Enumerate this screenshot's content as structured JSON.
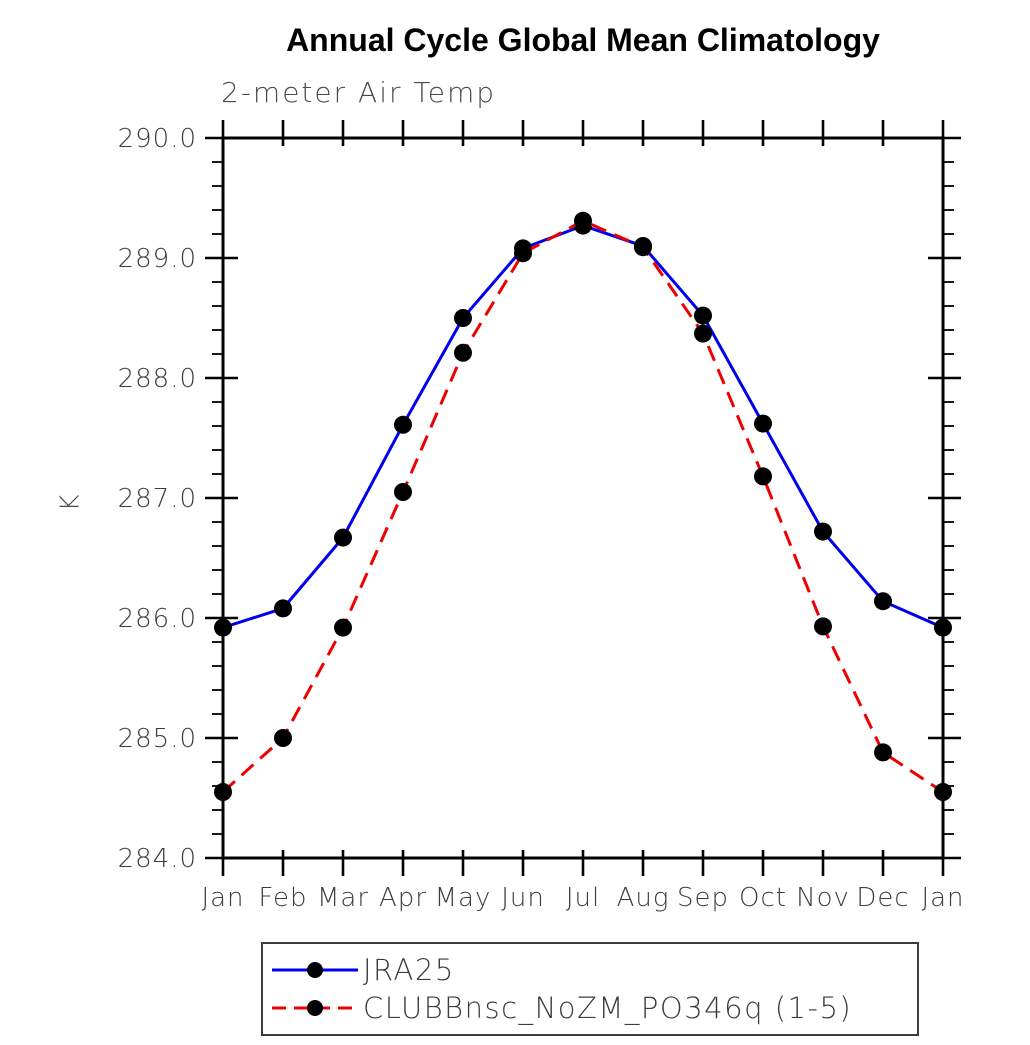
{
  "title": "Annual Cycle Global Mean Climatology",
  "subtitle": "2-meter Air Temp",
  "ylabel": "K",
  "chart_data": {
    "type": "line",
    "categories": [
      "Jan",
      "Feb",
      "Mar",
      "Apr",
      "May",
      "Jun",
      "Jul",
      "Aug",
      "Sep",
      "Oct",
      "Nov",
      "Dec",
      "Jan"
    ],
    "series": [
      {
        "name": "JRA25",
        "color": "#0000ee",
        "style": "solid",
        "marker": "black-dot",
        "values": [
          285.92,
          286.08,
          286.67,
          287.61,
          288.5,
          289.08,
          289.27,
          289.1,
          288.52,
          287.62,
          286.72,
          286.14,
          285.92
        ]
      },
      {
        "name": "CLUBBnsc_NoZM_PO346q (1-5)",
        "color": "#ee0000",
        "style": "dashed",
        "marker": "black-dot",
        "values": [
          284.55,
          285.0,
          285.92,
          287.05,
          288.21,
          289.04,
          289.31,
          289.09,
          288.37,
          287.18,
          285.93,
          284.88,
          284.55
        ]
      }
    ],
    "ylim": [
      284.0,
      290.0
    ],
    "ytick_major": 1.0,
    "ytick_minor": 0.2,
    "ytick_labels": [
      "284.0",
      "285.0",
      "286.0",
      "287.0",
      "288.0",
      "289.0",
      "290.0"
    ],
    "grid": false,
    "legend_position": "below-plot",
    "axis_color": "#000000",
    "marker_color": "#000000"
  }
}
